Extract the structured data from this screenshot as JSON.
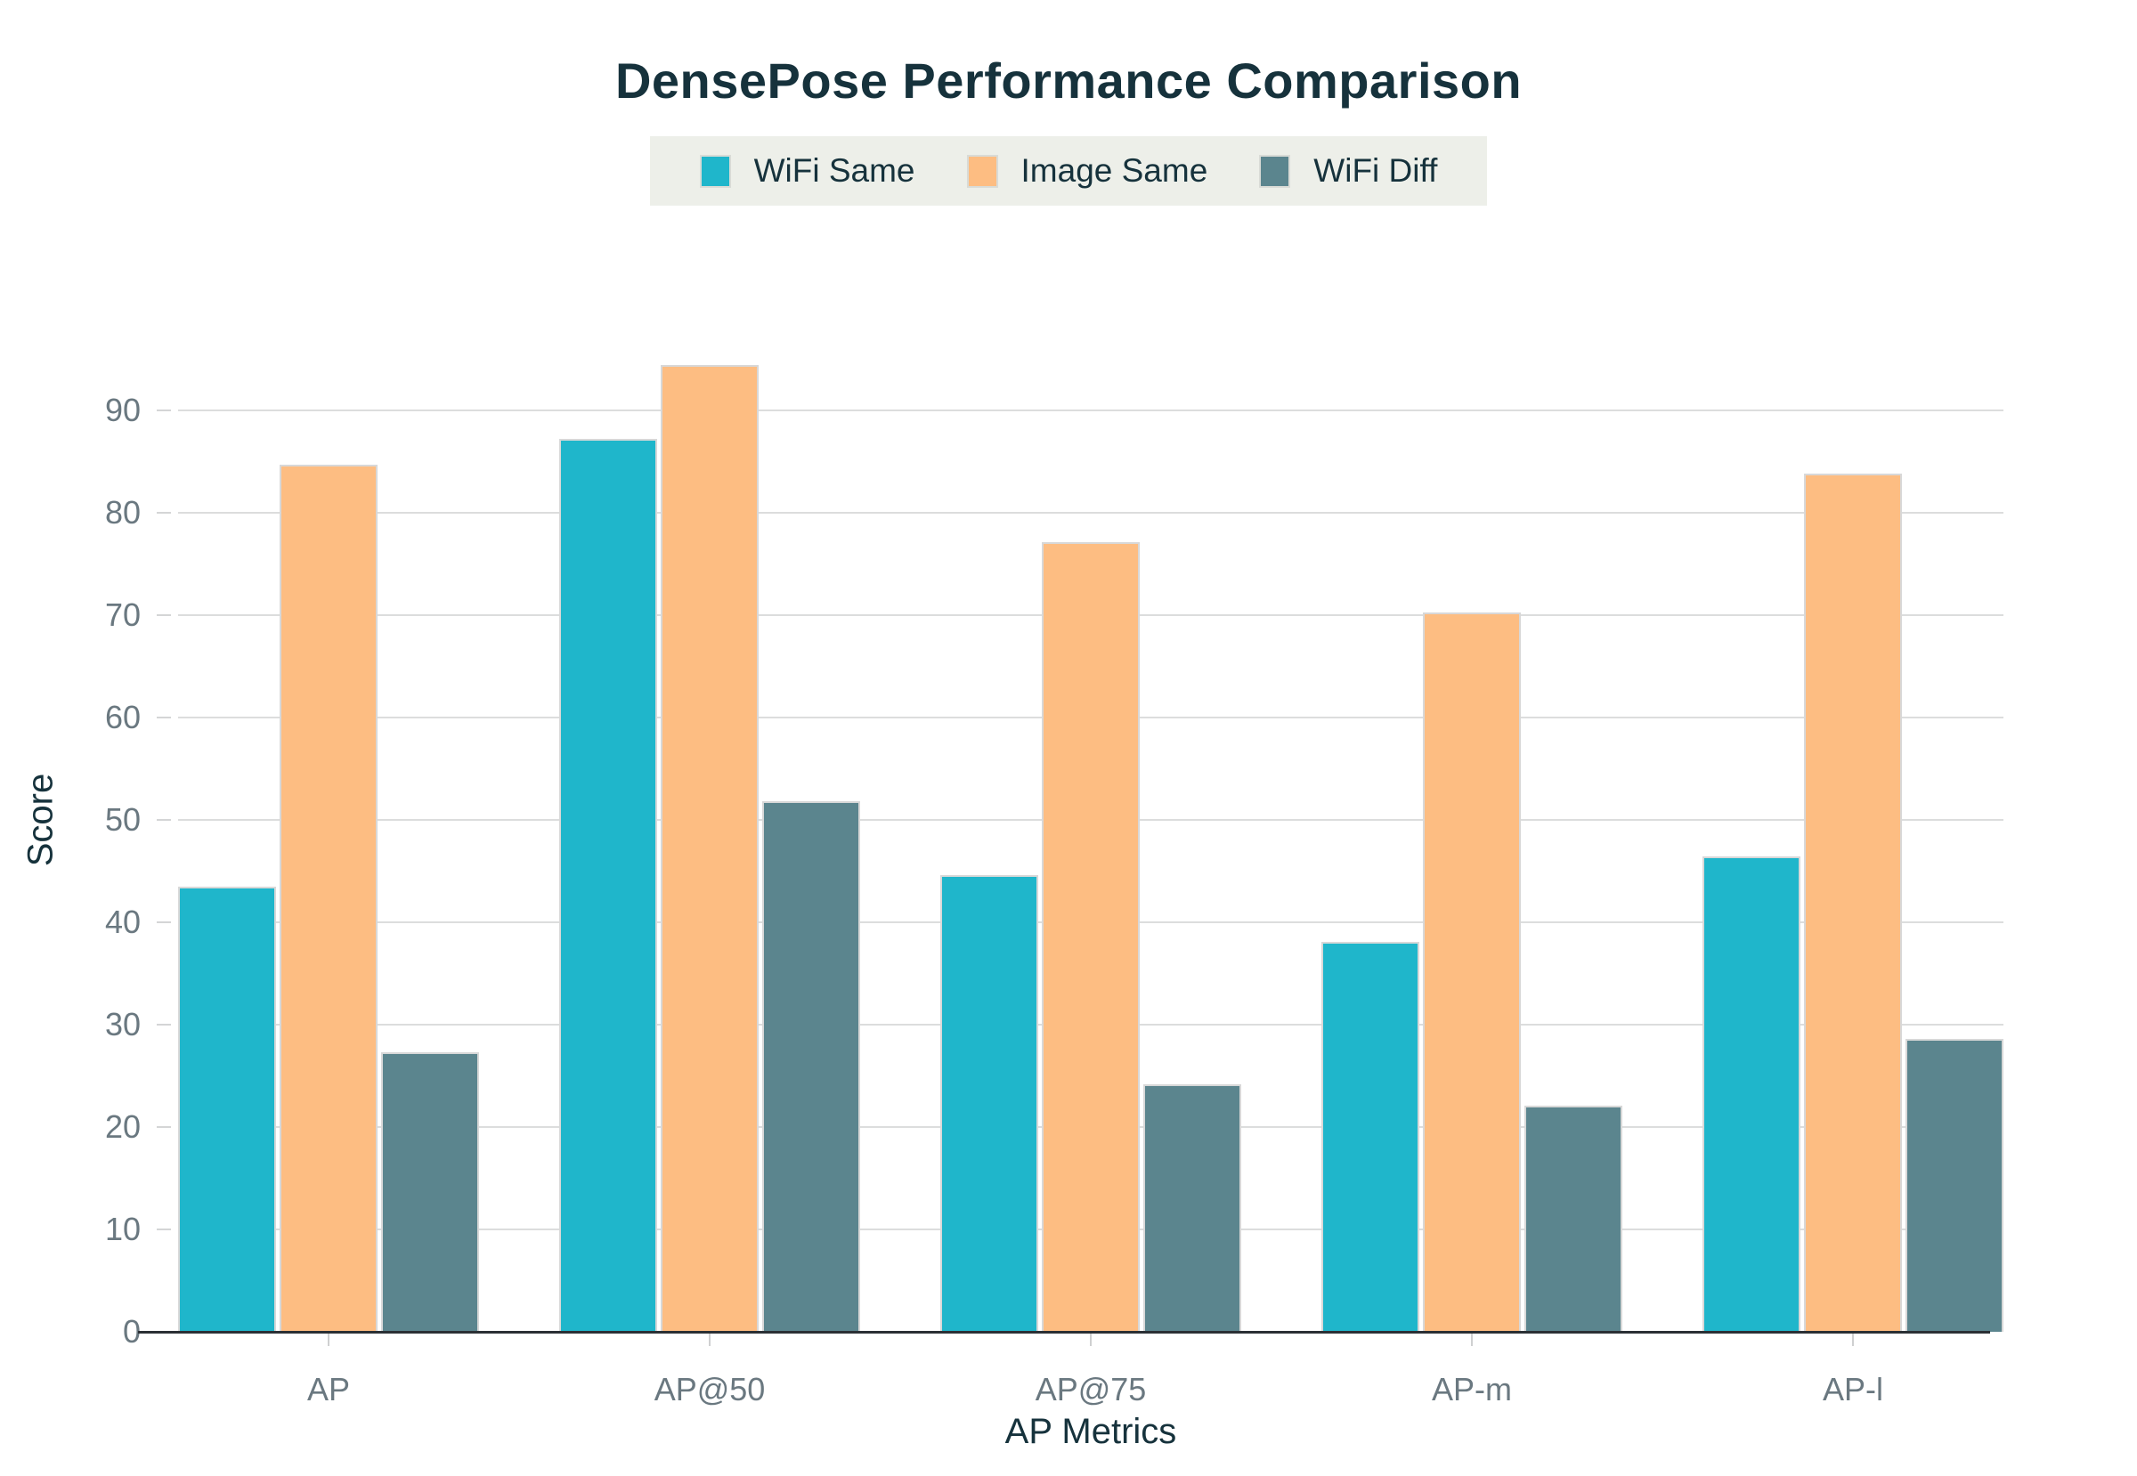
{
  "chart_data": {
    "type": "bar",
    "title": "DensePose Performance Comparison",
    "xlabel": "AP Metrics",
    "ylabel": "Score",
    "categories": [
      "AP",
      "AP@50",
      "AP@75",
      "AP-m",
      "AP-l"
    ],
    "series": [
      {
        "name": "WiFi Same",
        "color": "#1fb6cb",
        "values": [
          43.5,
          87.2,
          44.6,
          38.1,
          46.4
        ]
      },
      {
        "name": "Image Same",
        "color": "#fdbd82",
        "values": [
          84.7,
          94.4,
          77.1,
          70.3,
          83.8
        ]
      },
      {
        "name": "WiFi Diff",
        "color": "#5b858e",
        "values": [
          27.3,
          51.8,
          24.2,
          22.1,
          28.6
        ]
      }
    ],
    "ylim": [
      0,
      100
    ],
    "yticks": [
      0,
      10,
      20,
      30,
      40,
      50,
      60,
      70,
      80,
      90
    ],
    "grid": true,
    "legend_position": "top-center",
    "legend_background": "#edefe9",
    "title_color": "#16323c",
    "tick_label_color": "#6a7880"
  }
}
